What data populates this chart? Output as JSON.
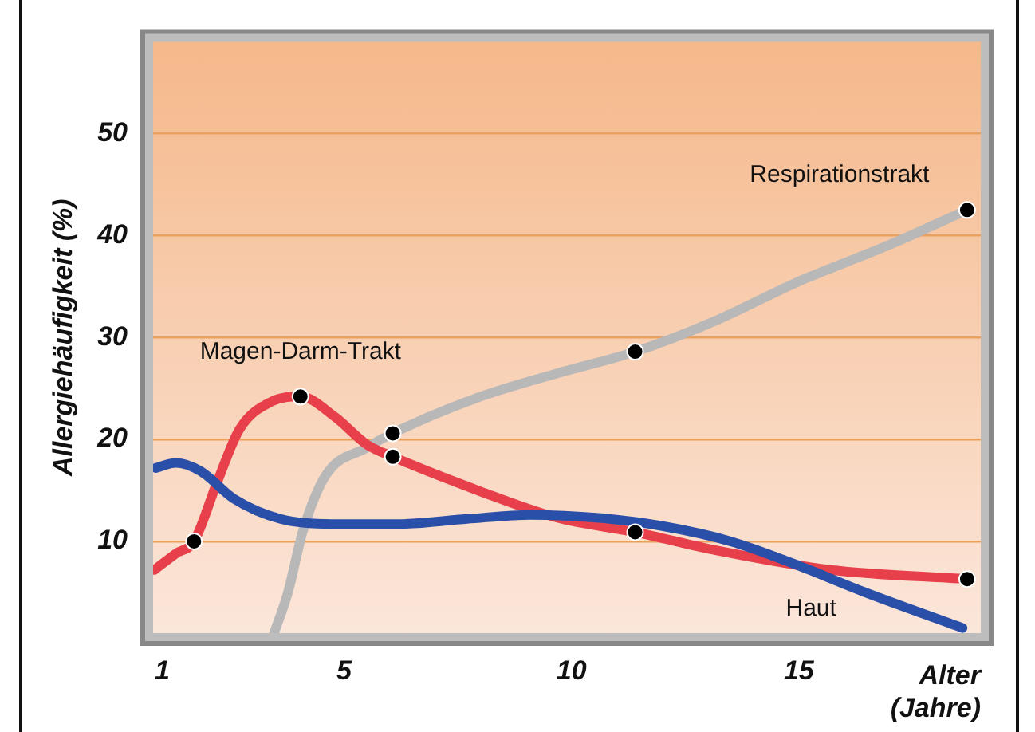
{
  "chart_data": {
    "type": "line",
    "xlabel": "Alter (Jahre)",
    "ylabel": "Allergiehäufigkeit (%)",
    "xlim": [
      0.8,
      19
    ],
    "xticks": [
      1,
      5,
      10,
      15
    ],
    "ylim": [
      1,
      59
    ],
    "yticks": [
      10,
      20,
      30,
      40,
      50
    ],
    "grid": "y",
    "legend": false,
    "marker": "none",
    "line_style": "solid",
    "series": [
      {
        "name": "Haut",
        "color": "#2a4fa8",
        "x": [
          0.86,
          1.3,
          1.84,
          2.57,
          3.6,
          4.74,
          6.2,
          7.7,
          9.1,
          10.6,
          12.0,
          13.5,
          14.95,
          16.4,
          18.6
        ],
        "values": [
          17.2,
          17.7,
          16.9,
          14.2,
          12.2,
          11.7,
          11.7,
          12.2,
          12.6,
          12.3,
          11.5,
          10,
          7.7,
          5.1,
          1.5
        ]
      },
      {
        "name": "Magen-Darm-Trakt",
        "color": "#e8404a",
        "x": [
          0.83,
          1.3,
          1.7,
          2.2,
          2.7,
          3.4,
          4.04,
          4.8,
          5.5,
          6.07,
          8.0,
          9.7,
          11.4,
          13.2,
          15.7,
          18.7
        ],
        "values": [
          7.2,
          8.8,
          10,
          15.7,
          21,
          23.7,
          24.2,
          22.2,
          19.5,
          18.3,
          14.9,
          12.3,
          10.9,
          9.1,
          7.2,
          6.3
        ]
      },
      {
        "name": "Respirationstrakt",
        "color": "#b8b8b8",
        "x": [
          3.46,
          3.76,
          4.1,
          4.6,
          5.5,
          6.07,
          8.0,
          9.7,
          11.4,
          13.2,
          14.95,
          17.0,
          18.7
        ],
        "values": [
          1,
          4.9,
          11.1,
          16.5,
          19.2,
          20.6,
          24.2,
          26.5,
          28.6,
          31.7,
          35.4,
          39.1,
          42.5
        ]
      },
      {
        "type": "scatter",
        "marker": "circle",
        "color": "#000000",
        "x": [
          1.7,
          4.04,
          6.07,
          11.4,
          18.7,
          6.07,
          11.4,
          18.7
        ],
        "values": [
          10,
          24.2,
          18.3,
          10.9,
          6.3,
          20.6,
          28.6,
          42.5
        ]
      }
    ]
  }
}
